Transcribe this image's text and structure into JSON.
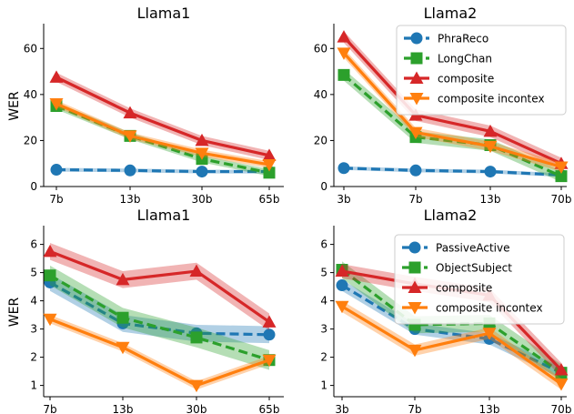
{
  "chart_data": [
    {
      "type": "line",
      "title": "Llama1",
      "ylabel": "WER",
      "categories": [
        "7b",
        "13b",
        "30b",
        "65b"
      ],
      "ylim": [
        0,
        70
      ],
      "yticks": [
        "0",
        "20",
        "40",
        "60"
      ],
      "legend": false,
      "series": [
        {
          "name": "PhraReco",
          "values": [
            7.3,
            7.0,
            6.5,
            6.5
          ],
          "band": 0.8,
          "color": "#1f77b4",
          "marker": "circle",
          "dash": "dashed"
        },
        {
          "name": "LongChan",
          "values": [
            35.0,
            22.0,
            12.0,
            6.0
          ],
          "band": 1.5,
          "color": "#2ca02c",
          "marker": "square",
          "dash": "dashed"
        },
        {
          "name": "composite",
          "values": [
            47.5,
            32.0,
            20.0,
            13.5
          ],
          "band": 2.0,
          "color": "#d62728",
          "marker": "triangle-up",
          "dash": "solid"
        },
        {
          "name": "composite incontex",
          "values": [
            36.0,
            22.0,
            14.5,
            9.5
          ],
          "band": 1.5,
          "color": "#ff7f0e",
          "marker": "triangle-down",
          "dash": "solid"
        }
      ]
    },
    {
      "type": "line",
      "title": "Llama2",
      "ylabel": "",
      "categories": [
        "3b",
        "7b",
        "13b",
        "70b"
      ],
      "ylim": [
        0,
        70
      ],
      "yticks": [
        "0",
        "20",
        "40",
        "60"
      ],
      "legend": true,
      "legend_position": "top-right",
      "series": [
        {
          "name": "PhraReco",
          "values": [
            8.0,
            7.0,
            6.5,
            5.0
          ],
          "band": 0.8,
          "color": "#1f77b4",
          "marker": "circle",
          "dash": "dashed"
        },
        {
          "name": "LongChan",
          "values": [
            48.5,
            21.5,
            18.0,
            4.5
          ],
          "band": 2.5,
          "color": "#2ca02c",
          "marker": "square",
          "dash": "dashed"
        },
        {
          "name": "composite",
          "values": [
            65.0,
            31.0,
            24.0,
            10.0
          ],
          "band": 2.5,
          "color": "#d62728",
          "marker": "triangle-up",
          "dash": "solid"
        },
        {
          "name": "composite incontex",
          "values": [
            58.0,
            23.5,
            17.5,
            8.5
          ],
          "band": 2.0,
          "color": "#ff7f0e",
          "marker": "triangle-down",
          "dash": "solid"
        }
      ]
    },
    {
      "type": "line",
      "title": "Llama1",
      "ylabel": "WER",
      "categories": [
        "7b",
        "13b",
        "30b",
        "65b"
      ],
      "ylim": [
        0.6,
        6.6
      ],
      "yticks": [
        "1",
        "2",
        "3",
        "4",
        "5",
        "6"
      ],
      "legend": false,
      "series": [
        {
          "name": "PassiveActive",
          "values": [
            4.65,
            3.2,
            2.85,
            2.8
          ],
          "band": 0.3,
          "color": "#1f77b4",
          "marker": "circle",
          "dash": "dashed"
        },
        {
          "name": "ObjectSubject",
          "values": [
            4.9,
            3.4,
            2.7,
            1.9
          ],
          "band": 0.35,
          "color": "#2ca02c",
          "marker": "square",
          "dash": "dashed"
        },
        {
          "name": "composite",
          "values": [
            5.75,
            4.75,
            5.05,
            3.25
          ],
          "band": 0.3,
          "color": "#d62728",
          "marker": "triangle-up",
          "dash": "solid"
        },
        {
          "name": "composite incontex",
          "values": [
            3.35,
            2.35,
            1.0,
            1.9
          ],
          "band": 0.15,
          "color": "#ff7f0e",
          "marker": "triangle-down",
          "dash": "solid"
        }
      ]
    },
    {
      "type": "line",
      "title": "Llama2",
      "ylabel": "",
      "categories": [
        "3b",
        "7b",
        "13b",
        "70b"
      ],
      "ylim": [
        0.6,
        6.6
      ],
      "yticks": [
        "1",
        "2",
        "3",
        "4",
        "5",
        "6"
      ],
      "legend": true,
      "legend_position": "top-right",
      "series": [
        {
          "name": "PassiveActive",
          "values": [
            4.55,
            3.0,
            2.65,
            1.45
          ],
          "band": 0.2,
          "color": "#1f77b4",
          "marker": "circle",
          "dash": "dashed"
        },
        {
          "name": "ObjectSubject",
          "values": [
            5.1,
            3.15,
            3.2,
            1.45
          ],
          "band": 0.3,
          "color": "#2ca02c",
          "marker": "square",
          "dash": "dashed"
        },
        {
          "name": "composite",
          "values": [
            5.05,
            4.6,
            4.2,
            1.55
          ],
          "band": 0.25,
          "color": "#d62728",
          "marker": "triangle-up",
          "dash": "solid"
        },
        {
          "name": "composite incontex",
          "values": [
            3.8,
            2.25,
            2.85,
            1.05
          ],
          "band": 0.2,
          "color": "#ff7f0e",
          "marker": "triangle-down",
          "dash": "solid"
        }
      ]
    }
  ]
}
